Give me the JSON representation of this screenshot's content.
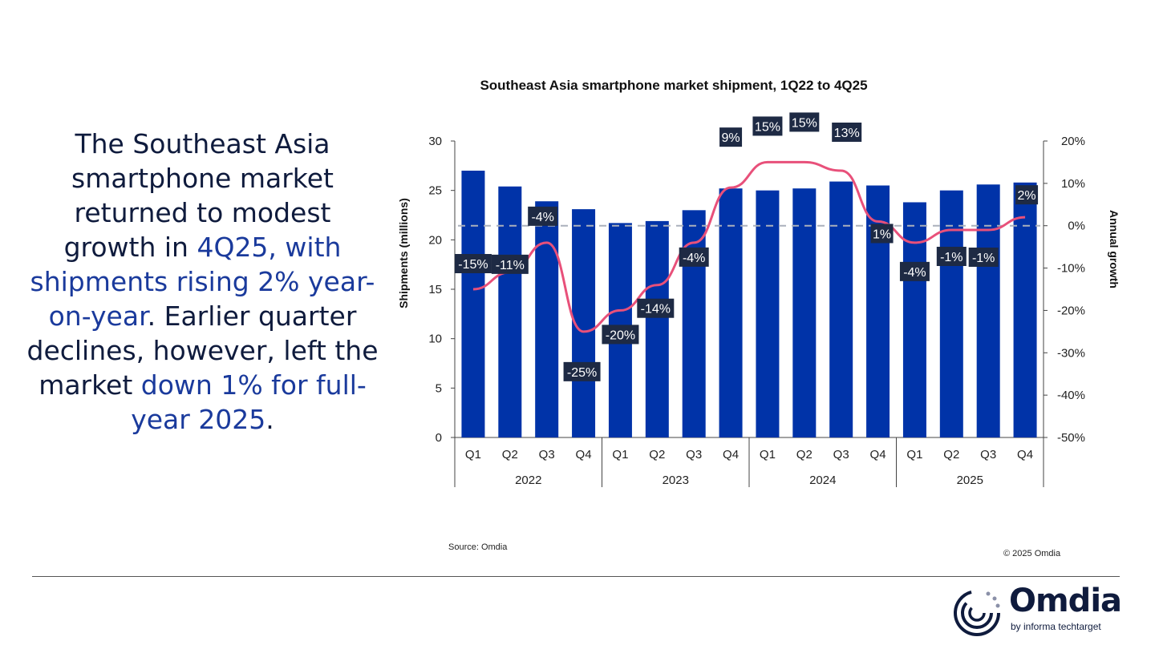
{
  "headline": {
    "part1": "The Southeast Asia smartphone market returned to modest growth in ",
    "part2": "4Q25, with shipments rising 2% year-on-year",
    "part3": ". Earlier quarter declines, however, left the market ",
    "part4": "down 1% for full-year 2025",
    "part5": "."
  },
  "chart_data": {
    "type": "bar+line",
    "title": "Southeast Asia smartphone market shipment, 1Q22 to 4Q25",
    "ylabel": "Shipments (millions)",
    "y2label": "Annual growth",
    "ylim": [
      0,
      30
    ],
    "y2lim": [
      -50,
      20
    ],
    "yticks": [
      "0",
      "5",
      "10",
      "15",
      "20",
      "25",
      "30"
    ],
    "y2ticks": [
      "-50%",
      "-40%",
      "-30%",
      "-20%",
      "-10%",
      "0%",
      "10%",
      "20%"
    ],
    "categories": [
      "Q1",
      "Q2",
      "Q3",
      "Q4",
      "Q1",
      "Q2",
      "Q3",
      "Q4",
      "Q1",
      "Q2",
      "Q3",
      "Q4",
      "Q1",
      "Q2",
      "Q3",
      "Q4"
    ],
    "years": [
      "2022",
      "2023",
      "2024",
      "2025"
    ],
    "series": [
      {
        "type": "bar",
        "color": "#0033a8",
        "values": [
          27.0,
          25.4,
          23.9,
          23.1,
          21.7,
          21.9,
          23.0,
          25.2,
          25.0,
          25.2,
          25.9,
          25.5,
          23.8,
          25.0,
          25.6,
          25.8
        ]
      },
      {
        "type": "line",
        "color": "#e8507a",
        "values": [
          -15,
          -11,
          -4,
          -25,
          -20,
          -14,
          -4,
          9,
          15,
          15,
          13,
          1,
          -4,
          -1,
          -1,
          2
        ],
        "labels": [
          "-15%",
          "-11%",
          "-4%",
          "-25%",
          "-20%",
          "-14%",
          "-4%",
          "9%",
          "15%",
          "15%",
          "13%",
          "1%",
          "-4%",
          "-1%",
          "-1%",
          "2%"
        ]
      }
    ],
    "reference_line": 0,
    "grid": false,
    "legend": "none"
  },
  "source": "Source: Omdia",
  "copyright": "© 2025 Omdia",
  "logo": {
    "word": "Omdia",
    "by": "by informa techtarget"
  }
}
